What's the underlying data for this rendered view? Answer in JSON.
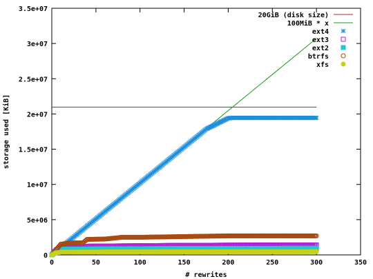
{
  "chart_data": {
    "type": "scatter",
    "xlabel": "# rewrites",
    "ylabel": "storage used [KiB]",
    "xlim": [
      0,
      350
    ],
    "ylim": [
      0,
      35000000
    ],
    "xticks": [
      0,
      50,
      100,
      150,
      200,
      250,
      300,
      350
    ],
    "yticks": [
      0,
      5000000,
      10000000,
      15000000,
      20000000,
      25000000,
      30000000,
      35000000
    ],
    "xtick_labels": [
      "0",
      "50",
      "100",
      "150",
      "200",
      "250",
      "300",
      "350"
    ],
    "ytick_labels": [
      "0",
      "5e+06",
      "1e+07",
      "1.5e+07",
      "2e+07",
      "2.5e+07",
      "3e+07",
      "3.5e+07"
    ],
    "grid": false,
    "legend_position": "top-right",
    "series": [
      {
        "name": "20GiB (disk size)",
        "kind": "line",
        "color": "#c02020",
        "points": [
          [
            0,
            20971520
          ],
          [
            300,
            20971520
          ]
        ]
      },
      {
        "name": "100MiB * x",
        "kind": "line",
        "color": "#1a9a1a",
        "points": [
          [
            0,
            0
          ],
          [
            300,
            30720000
          ]
        ]
      },
      {
        "name": "ext4",
        "kind": "marker",
        "marker": "asterisk",
        "color": "#1e8fdc",
        "points": [
          [
            0,
            0
          ],
          [
            10,
            1020000
          ],
          [
            25,
            2550000
          ],
          [
            50,
            5100000
          ],
          [
            75,
            7650000
          ],
          [
            100,
            10200000
          ],
          [
            125,
            12750000
          ],
          [
            150,
            15300000
          ],
          [
            175,
            17850000
          ],
          [
            200,
            19400000
          ],
          [
            205,
            19450000
          ],
          [
            250,
            19450000
          ],
          [
            300,
            19450000
          ]
        ]
      },
      {
        "name": "ext3",
        "kind": "marker",
        "marker": "square",
        "color": "#b020d0",
        "points": [
          [
            0,
            0
          ],
          [
            5,
            700000
          ],
          [
            12,
            1150000
          ],
          [
            50,
            1250000
          ],
          [
            100,
            1300000
          ],
          [
            150,
            1350000
          ],
          [
            200,
            1380000
          ],
          [
            250,
            1400000
          ],
          [
            300,
            1400000
          ]
        ]
      },
      {
        "name": "ext2",
        "kind": "marker",
        "marker": "filled-square",
        "color": "#20c8d0",
        "points": [
          [
            0,
            0
          ],
          [
            5,
            500000
          ],
          [
            12,
            800000
          ],
          [
            50,
            850000
          ],
          [
            100,
            880000
          ],
          [
            150,
            900000
          ],
          [
            200,
            920000
          ],
          [
            250,
            930000
          ],
          [
            300,
            940000
          ]
        ]
      },
      {
        "name": "btrfs",
        "kind": "marker",
        "marker": "circle",
        "color": "#a84a10",
        "points": [
          [
            0,
            0
          ],
          [
            10,
            1500000
          ],
          [
            20,
            1700000
          ],
          [
            35,
            1700000
          ],
          [
            40,
            2200000
          ],
          [
            60,
            2250000
          ],
          [
            80,
            2500000
          ],
          [
            100,
            2500000
          ],
          [
            150,
            2600000
          ],
          [
            200,
            2700000
          ],
          [
            250,
            2700000
          ],
          [
            300,
            2700000
          ]
        ]
      },
      {
        "name": "xfs",
        "kind": "marker",
        "marker": "filled-circle",
        "color": "#c8d018",
        "points": [
          [
            0,
            0
          ],
          [
            5,
            300000
          ],
          [
            12,
            400000
          ],
          [
            50,
            420000
          ],
          [
            100,
            430000
          ],
          [
            150,
            440000
          ],
          [
            200,
            450000
          ],
          [
            250,
            450000
          ],
          [
            300,
            460000
          ]
        ]
      }
    ]
  }
}
